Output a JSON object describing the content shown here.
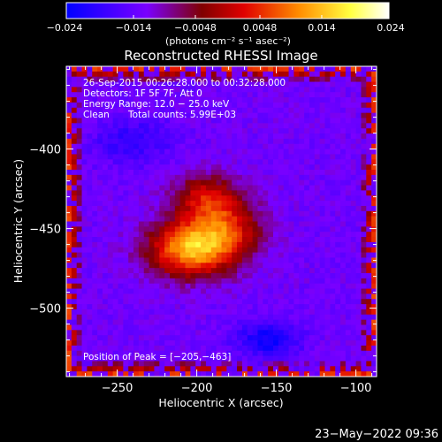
{
  "chart_data": {
    "type": "heatmap",
    "title": "Reconstructed RHESSI Image",
    "xlabel": "Heliocentric X (arcsec)",
    "ylabel": "Heliocentric Y (arcsec)",
    "xlim": [
      -282,
      -87
    ],
    "ylim": [
      -543,
      -348
    ],
    "x_ticks": [
      -250,
      -200,
      -150,
      -100
    ],
    "x_tick_labels": [
      "−250",
      "−200",
      "−150",
      "−100"
    ],
    "y_ticks": [
      -400,
      -450,
      -500
    ],
    "y_tick_labels": [
      "−400",
      "−450",
      "−500"
    ],
    "colorbar": {
      "range": [
        -0.024,
        0.024
      ],
      "ticks": [
        -0.024,
        -0.014,
        -0.0048,
        0.0048,
        0.014,
        0.024
      ],
      "tick_labels": [
        "−0.024",
        "−0.014",
        "−0.0048",
        "0.0048",
        "0.014",
        "0.024"
      ],
      "unit_label": "(photons cm⁻² s⁻¹ asec⁻²)",
      "colors": [
        "#0000ff",
        "#7a00ff",
        "#800000",
        "#ff0000",
        "#ffa500",
        "#ffff66",
        "#ffffff"
      ]
    },
    "annotations": {
      "time_range": "26-Sep-2015 00:26:28.000 to 00:32:28.000",
      "detectors": "Detectors: 1F 5F 7F, Att 0",
      "energy_range": "Energy Range: 12.0 − 25.0 keV",
      "method": "Clean",
      "total_counts": "Total counts: 5.99E+03",
      "peak_position": "Position of Peak = [−205,−463]"
    },
    "peak": [
      -205,
      -463
    ],
    "sources": [
      {
        "x": -205,
        "y": -463,
        "peak": 0.024,
        "sx": 18,
        "sy": 12
      },
      {
        "x": -183,
        "y": -450,
        "peak": 0.016,
        "sx": 16,
        "sy": 14
      },
      {
        "x": -195,
        "y": -430,
        "peak": 0.012,
        "sx": 14,
        "sy": 10
      },
      {
        "x": -155,
        "y": -520,
        "peak": -0.01,
        "sx": 14,
        "sy": 8
      },
      {
        "x": -240,
        "y": -395,
        "peak": -0.006,
        "sx": 18,
        "sy": 10
      }
    ],
    "grid": false
  },
  "footer": {
    "date_stamp": "23−May−2022 09:36"
  }
}
